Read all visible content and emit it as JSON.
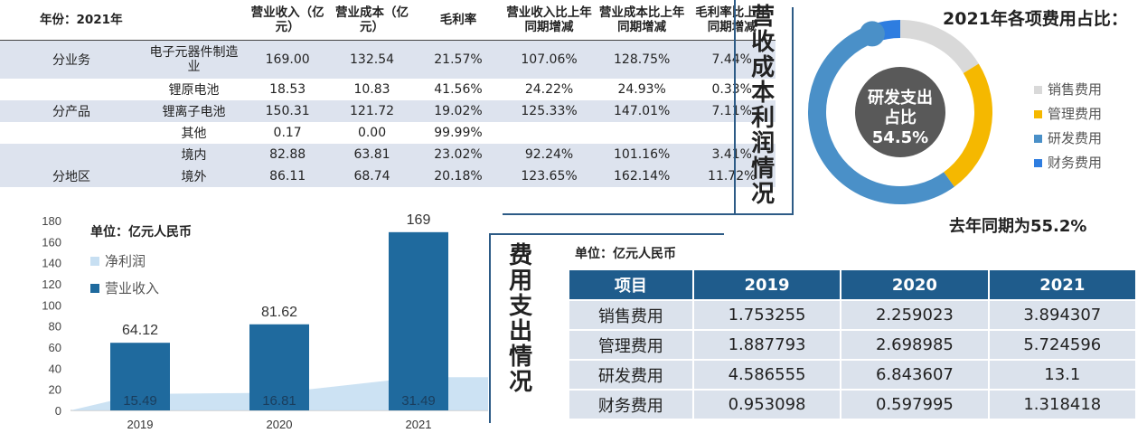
{
  "revenue_table": {
    "headers": [
      "年份：2021年",
      "营业收入（亿元）",
      "营业成本（亿元）",
      "毛利率",
      "营业收入比上年同期增减",
      "营业成本比上年同期增减",
      "毛利率比上年同期增减"
    ],
    "rows": [
      {
        "group": "分业务",
        "item": "电子元器件制造业",
        "revenue": "169.00",
        "cost": "132.54",
        "margin": "21.57%",
        "rev_chg": "107.06%",
        "cost_chg": "128.75%",
        "margin_chg": "7.44%"
      },
      {
        "group": "",
        "item": "锂原电池",
        "revenue": "18.53",
        "cost": "10.83",
        "margin": "41.56%",
        "rev_chg": "24.22%",
        "cost_chg": "24.93%",
        "margin_chg": "0.33%"
      },
      {
        "group": "分产品",
        "item": "锂离子电池",
        "revenue": "150.31",
        "cost": "121.72",
        "margin": "19.02%",
        "rev_chg": "125.33%",
        "cost_chg": "147.01%",
        "margin_chg": "7.11%"
      },
      {
        "group": "",
        "item": "其他",
        "revenue": "0.17",
        "cost": "0.00",
        "margin": "99.99%",
        "rev_chg": "",
        "cost_chg": "",
        "margin_chg": ""
      },
      {
        "group": "",
        "item": "境内",
        "revenue": "82.88",
        "cost": "63.81",
        "margin": "23.02%",
        "rev_chg": "92.24%",
        "cost_chg": "101.16%",
        "margin_chg": "3.41%"
      },
      {
        "group": "分地区",
        "item": "境外",
        "revenue": "86.11",
        "cost": "68.74",
        "margin": "20.18%",
        "rev_chg": "123.65%",
        "cost_chg": "162.14%",
        "margin_chg": "11.72%"
      }
    ]
  },
  "titles": {
    "revenue_cost_profit": "营收成本利润情况",
    "expense": "费用支出情况",
    "donut_title": "2021年各项费用占比：",
    "last_year_note": "去年同期为55.2%"
  },
  "colors": {
    "bar_dark": "#1f6a9e",
    "area_light": "#c7dff2",
    "donut_sales": "#d9d9d9",
    "donut_mgmt": "#f5b800",
    "donut_rd": "#4a90c8",
    "donut_fin": "#2e7de0",
    "table_header": "#1f5c8c"
  },
  "chart_data": [
    {
      "type": "bar",
      "unit_label": "单位：亿元人民币",
      "categories": [
        "2019",
        "2020",
        "2021"
      ],
      "series": [
        {
          "name": "净利润",
          "style": "area",
          "values": [
            15.49,
            16.81,
            31.49
          ]
        },
        {
          "name": "营业收入",
          "style": "bar",
          "values": [
            64.12,
            81.62,
            169
          ]
        }
      ],
      "ylim": [
        0,
        180
      ],
      "yticks": [
        0,
        20,
        40,
        60,
        80,
        100,
        120,
        140,
        160,
        180
      ],
      "legend": "top-left"
    },
    {
      "type": "pie",
      "title": "2021年各项费用占比：",
      "center_label": "研发支出占比",
      "center_value": "54.5%",
      "labels": [
        "销售费用",
        "管理费用",
        "研发费用",
        "财务费用"
      ],
      "values": [
        3.894307,
        5.724596,
        13.1,
        1.318418
      ]
    },
    {
      "type": "table",
      "unit_label": "单位：亿元人民币",
      "columns": [
        "项目",
        "2019",
        "2020",
        "2021"
      ],
      "rows": [
        [
          "销售费用",
          "1.753255",
          "2.259023",
          "3.894307"
        ],
        [
          "管理费用",
          "1.887793",
          "2.698985",
          "5.724596"
        ],
        [
          "研发费用",
          "4.586555",
          "6.843607",
          "13.1"
        ],
        [
          "财务费用",
          "0.953098",
          "0.597995",
          "1.318418"
        ]
      ]
    }
  ]
}
